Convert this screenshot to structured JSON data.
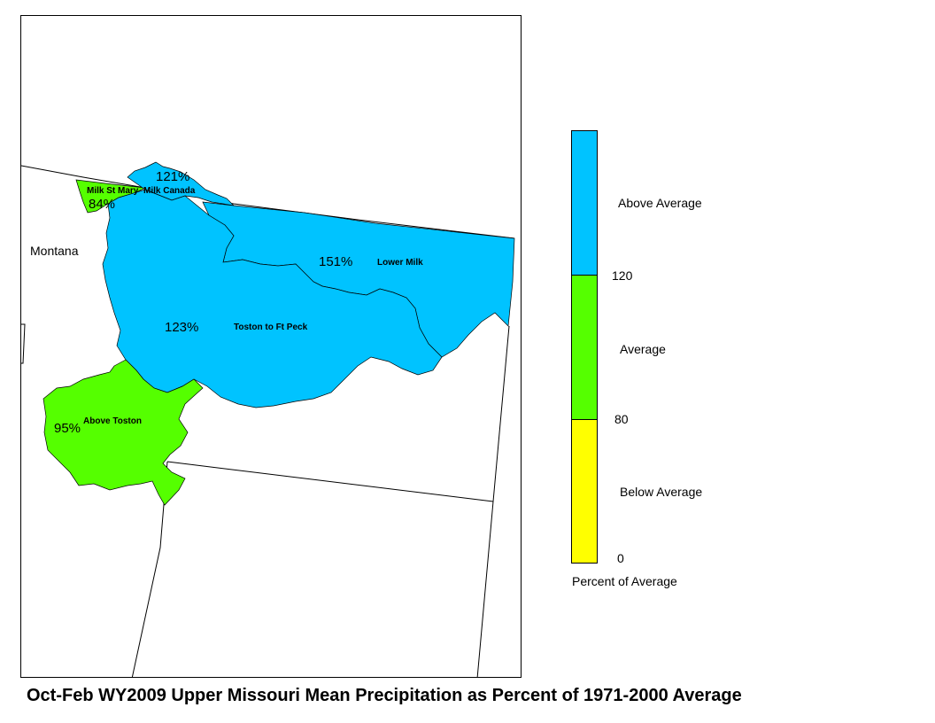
{
  "map": {
    "state_label": "Montana",
    "regions": [
      {
        "id": "milk-st-mary",
        "name": "Milk St Mary",
        "pct": "84%",
        "category": "average"
      },
      {
        "id": "milk-canada",
        "name": "Milk Canada",
        "pct": "121%",
        "category": "above"
      },
      {
        "id": "lower-milk",
        "name": "Lower Milk",
        "pct": "151%",
        "category": "above"
      },
      {
        "id": "toston-ft-peck",
        "name": "Toston to Ft Peck",
        "pct": "123%",
        "category": "above"
      },
      {
        "id": "above-toston",
        "name": "Above Toston",
        "pct": "95%",
        "category": "average"
      }
    ]
  },
  "legend": {
    "title": "Percent of Average",
    "categories": [
      {
        "label": "Above Average",
        "color": "#00c3ff"
      },
      {
        "label": "Average",
        "color": "#55ff00"
      },
      {
        "label": "Below Average",
        "color": "#ffff00"
      }
    ],
    "breaks": [
      "120",
      "80",
      "0"
    ]
  },
  "colors": {
    "above": "#00c3ff",
    "average": "#55ff00",
    "below": "#ffff00"
  },
  "caption": "Oct-Feb WY2009 Upper Missouri Mean Precipitation as Percent of 1971-2000 Average"
}
